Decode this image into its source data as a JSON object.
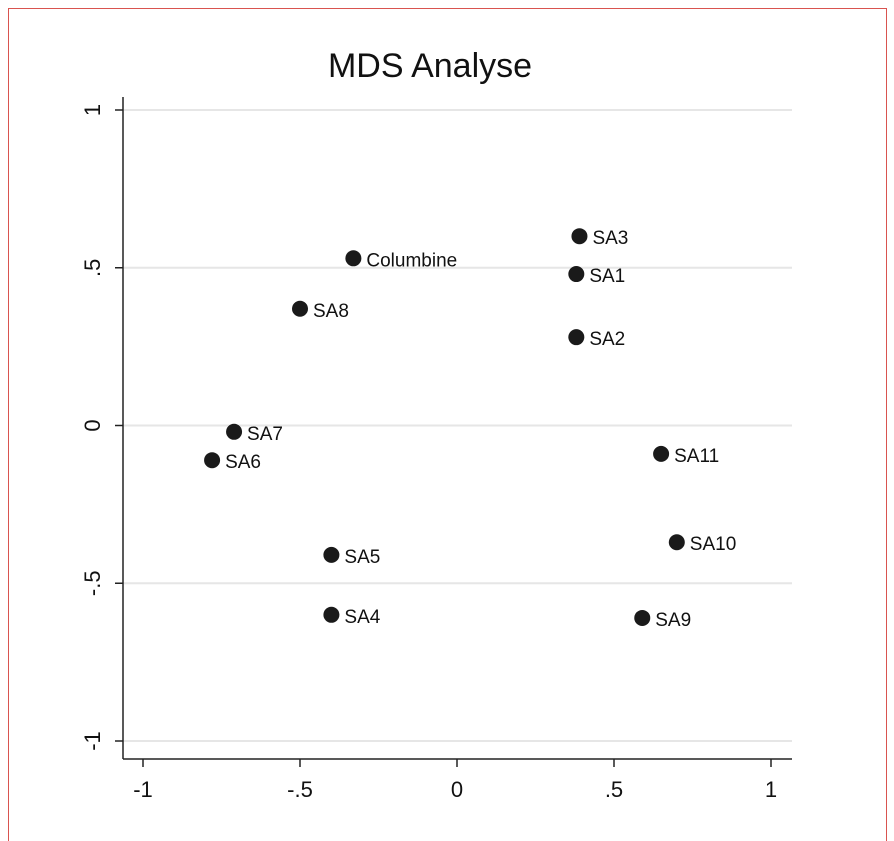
{
  "chart_data": {
    "type": "scatter",
    "title": "MDS Analyse",
    "xlabel": "",
    "ylabel": "",
    "xlim": [
      -1,
      1
    ],
    "ylim": [
      -1,
      1
    ],
    "x_ticks": [
      {
        "value": -1,
        "label": "-1"
      },
      {
        "value": -0.5,
        "label": "-.5"
      },
      {
        "value": 0,
        "label": "0"
      },
      {
        "value": 0.5,
        "label": ".5"
      },
      {
        "value": 1,
        "label": "1"
      }
    ],
    "y_ticks": [
      {
        "value": -1,
        "label": "-1"
      },
      {
        "value": -0.5,
        "label": "-.5"
      },
      {
        "value": 0,
        "label": "0"
      },
      {
        "value": 0.5,
        "label": ".5"
      },
      {
        "value": 1,
        "label": "1"
      }
    ],
    "grid": "horizontal",
    "legend": "none",
    "colors": {
      "marker": "#1a1a1a",
      "grid": "#e6e6e6",
      "axis": "#222222",
      "frame": "#d9534f"
    },
    "points": [
      {
        "label": "SA3",
        "x": 0.39,
        "y": 0.6
      },
      {
        "label": "Columbine",
        "x": -0.33,
        "y": 0.53
      },
      {
        "label": "SA1",
        "x": 0.38,
        "y": 0.48
      },
      {
        "label": "SA8",
        "x": -0.5,
        "y": 0.37
      },
      {
        "label": "SA2",
        "x": 0.38,
        "y": 0.28
      },
      {
        "label": "SA7",
        "x": -0.71,
        "y": -0.02
      },
      {
        "label": "SA6",
        "x": -0.78,
        "y": -0.11
      },
      {
        "label": "SA11",
        "x": 0.65,
        "y": -0.09
      },
      {
        "label": "SA10",
        "x": 0.7,
        "y": -0.37
      },
      {
        "label": "SA5",
        "x": -0.4,
        "y": -0.41
      },
      {
        "label": "SA4",
        "x": -0.4,
        "y": -0.6
      },
      {
        "label": "SA9",
        "x": 0.59,
        "y": -0.61
      }
    ]
  }
}
